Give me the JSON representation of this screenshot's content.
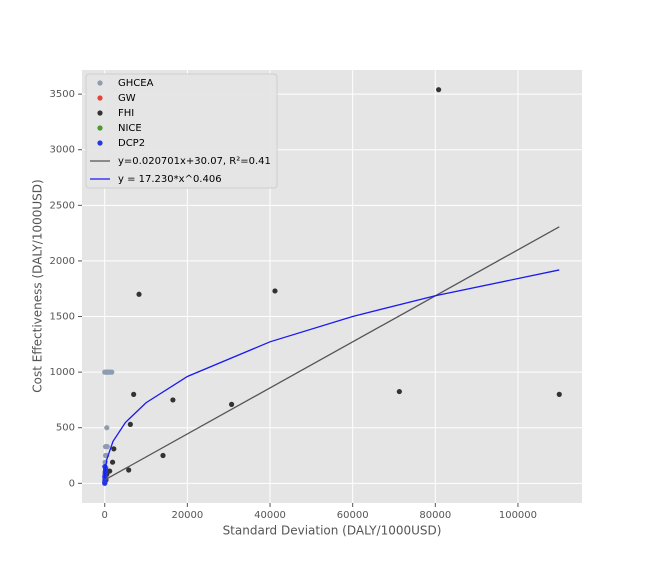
{
  "chart_data": {
    "type": "scatter",
    "xlabel": "Standard Deviation (DALY/1000USD)",
    "ylabel": "Cost Effectiveness (DALY/1000USD)",
    "xlim": [
      -5500,
      115500
    ],
    "ylim": [
      -177,
      3717
    ],
    "xticks": [
      0,
      20000,
      40000,
      60000,
      80000,
      100000
    ],
    "yticks": [
      0,
      500,
      1000,
      1500,
      2000,
      2500,
      3000,
      3500
    ],
    "grid": true,
    "legend": "upper left",
    "series": [
      {
        "name": "GHCEA",
        "type": "scatter",
        "color": "#8c9db0",
        "x": [
          0,
          300,
          600,
          900,
          1200,
          1700,
          500,
          200,
          600,
          200,
          500,
          100,
          300,
          100
        ],
        "values": [
          1000,
          1000,
          1000,
          1000,
          1000,
          1000,
          500,
          330,
          330,
          250,
          250,
          190,
          140,
          100
        ]
      },
      {
        "name": "GW",
        "type": "scatter",
        "color": "#e8413b",
        "x": [
          50,
          80
        ],
        "values": [
          20,
          40
        ]
      },
      {
        "name": "FHI",
        "type": "scatter",
        "color": "#333333",
        "x": [
          80800,
          8300,
          41200,
          16500,
          7000,
          30700,
          71300,
          110000,
          6200,
          14100,
          5800,
          2200,
          1900,
          1200,
          500,
          300
        ],
        "values": [
          3540,
          1700,
          1730,
          750,
          800,
          710,
          825,
          800,
          530,
          250,
          120,
          310,
          190,
          110,
          80,
          30
        ]
      },
      {
        "name": "NICE",
        "type": "scatter",
        "color": "#4c9a2a",
        "x": [
          60,
          120
        ],
        "values": [
          10,
          60
        ]
      },
      {
        "name": "DCP2",
        "type": "scatter",
        "color": "#2236e6",
        "x": [
          0,
          20,
          40,
          60,
          80,
          100,
          150,
          200,
          30,
          70,
          10,
          120
        ],
        "values": [
          0,
          10,
          30,
          50,
          70,
          90,
          110,
          130,
          150,
          20,
          60,
          40
        ]
      },
      {
        "name": "y=0.020701x+30.07, R²=0.41",
        "type": "line",
        "color": "#555555",
        "x": [
          0,
          110000
        ],
        "values": [
          30.07,
          2307
        ]
      },
      {
        "name": "y = 17.230*x^0.406",
        "type": "line",
        "color": "#1a1aee",
        "x": [
          10,
          100,
          500,
          2000,
          5000,
          10000,
          20000,
          40000,
          60000,
          80000,
          110000
        ],
        "values": [
          43.9,
          111.8,
          214.8,
          377,
          547,
          724.8,
          960.6,
          1272.6,
          1500.7,
          1686.8,
          1919
        ]
      }
    ]
  }
}
